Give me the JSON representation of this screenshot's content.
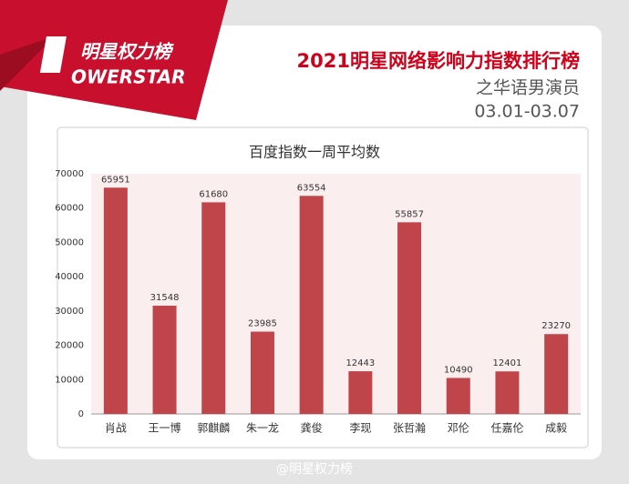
{
  "header": {
    "logo": "明星权力榜",
    "logo_sub": "OWERSTAR",
    "title": "2021明星网络影响力指数排行榜",
    "subtitle": "之华语男演员",
    "date": "03.01-03.07"
  },
  "chart_data": {
    "type": "bar",
    "title": "百度指数一周平均数",
    "categories": [
      "肖战",
      "王一博",
      "郭麒麟",
      "朱一龙",
      "龚俊",
      "李现",
      "张哲瀚",
      "邓伦",
      "任嘉伦",
      "成毅"
    ],
    "values": [
      65951,
      31548,
      61680,
      23985,
      63554,
      12443,
      55857,
      10490,
      12401,
      23270
    ],
    "color": "#c0454b",
    "ylim": [
      0,
      70000
    ],
    "yticks": [
      0,
      10000,
      20000,
      30000,
      40000,
      50000,
      60000,
      70000
    ],
    "grid": false
  },
  "watermark": "@明星权力榜"
}
